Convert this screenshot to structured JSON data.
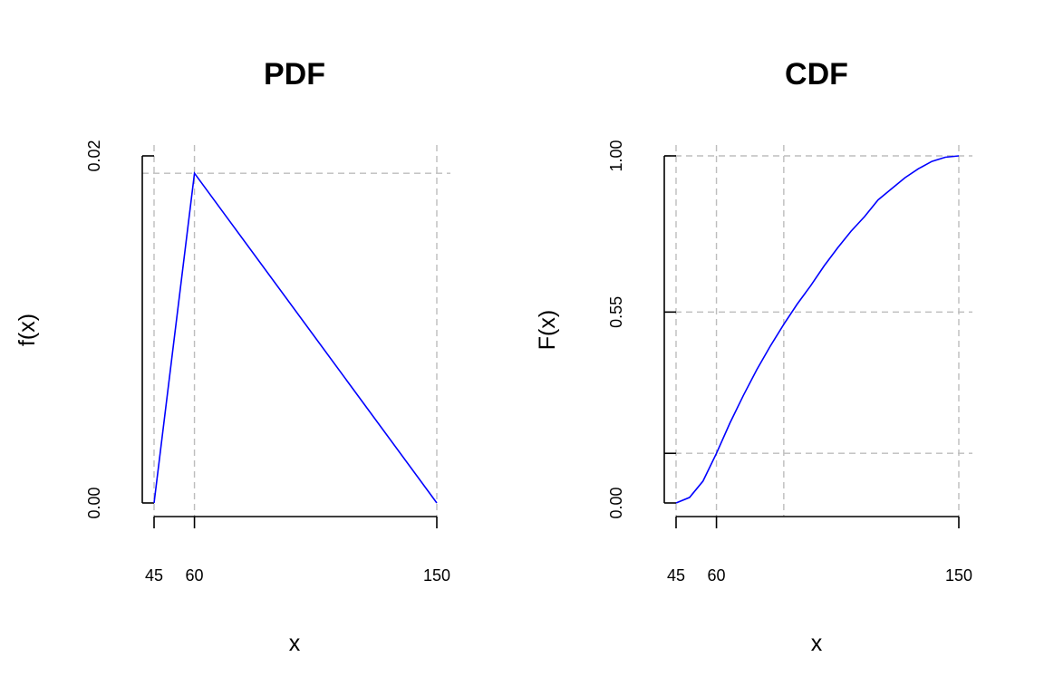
{
  "chart_data": [
    {
      "type": "line",
      "title": "PDF",
      "xlabel": "x",
      "ylabel": "f(x)",
      "xlim": [
        45,
        150
      ],
      "ylim": [
        0,
        0.02
      ],
      "x_ticks": [
        45,
        60,
        150
      ],
      "x_tick_labels": [
        "45",
        "60",
        "150"
      ],
      "y_ticks": [
        0,
        0.02
      ],
      "y_tick_labels": [
        "0.00",
        "0.02"
      ],
      "series": [
        {
          "color": "#0000ff",
          "x": [
            45,
            60,
            150
          ],
          "y": [
            0,
            0.019,
            0
          ]
        }
      ],
      "reference_lines": {
        "vertical": [
          45,
          60,
          150
        ],
        "horizontal": [
          0.019
        ]
      }
    },
    {
      "type": "line",
      "title": "CDF",
      "xlabel": "x",
      "ylabel": "F(x)",
      "xlim": [
        45,
        150
      ],
      "ylim": [
        0,
        1
      ],
      "x_ticks": [
        45,
        60,
        150
      ],
      "x_tick_labels": [
        "45",
        "60",
        "150"
      ],
      "y_ticks": [
        0,
        0.143,
        0.55,
        1.0
      ],
      "y_tick_labels": [
        "0.00",
        "",
        "0.55",
        "1.00"
      ],
      "series": [
        {
          "color": "#0000ff",
          "x": [
            45,
            50,
            55,
            60,
            65,
            70,
            75,
            80,
            85,
            90,
            95,
            100,
            105,
            110,
            115,
            120,
            125,
            130,
            135,
            140,
            145,
            150
          ],
          "y": [
            0,
            0.016,
            0.063,
            0.143,
            0.23,
            0.31,
            0.384,
            0.452,
            0.515,
            0.573,
            0.626,
            0.683,
            0.735,
            0.783,
            0.825,
            0.873,
            0.905,
            0.937,
            0.963,
            0.984,
            0.996,
            1.0
          ]
        }
      ],
      "reference_lines": {
        "vertical": [
          45,
          60,
          85,
          150
        ],
        "horizontal": [
          0.143,
          0.55,
          1.0
        ]
      }
    }
  ]
}
